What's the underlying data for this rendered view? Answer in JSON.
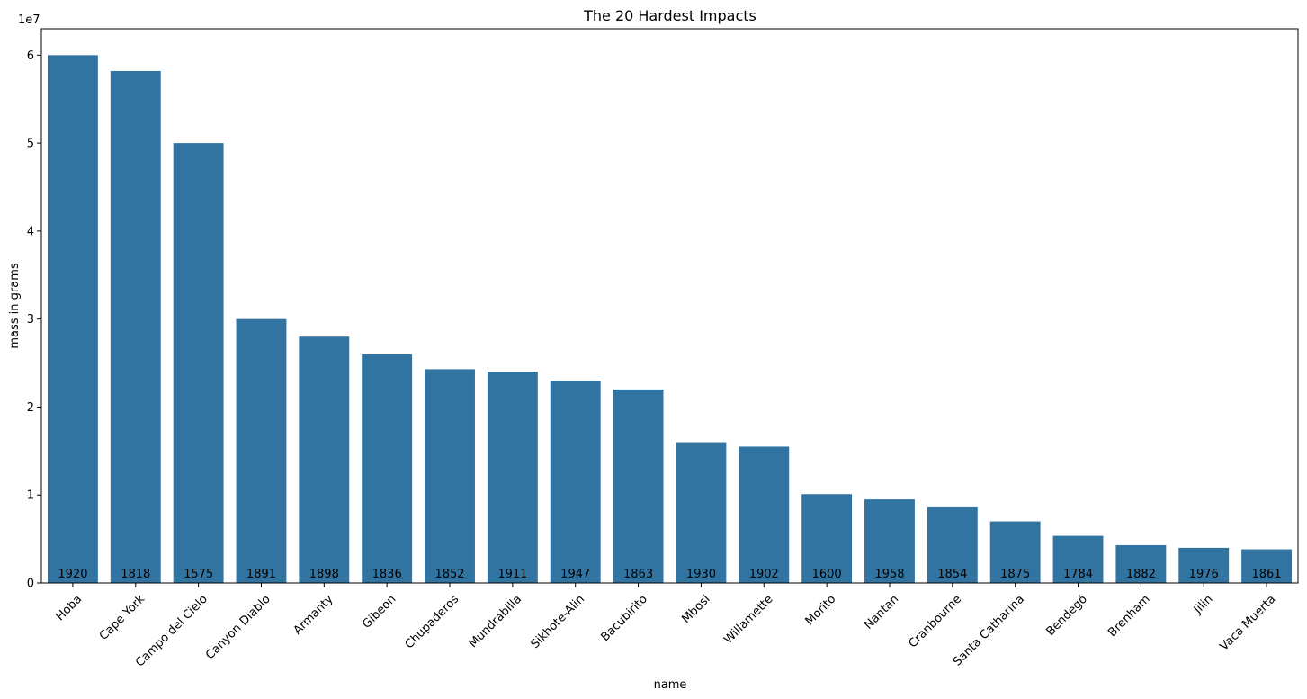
{
  "chart_data": {
    "type": "bar",
    "title": "The 20 Hardest Impacts",
    "xlabel": "name",
    "ylabel": "mass in grams",
    "y_offset_label": "1e7",
    "ylim": [
      0,
      63000000
    ],
    "yticks": [
      0,
      10000000,
      20000000,
      30000000,
      40000000,
      50000000,
      60000000
    ],
    "ytick_labels": [
      "0",
      "1",
      "2",
      "3",
      "4",
      "5",
      "6"
    ],
    "bar_color": "#3274a1",
    "grid": false,
    "categories": [
      "Hoba",
      "Cape York",
      "Campo del Cielo",
      "Canyon Diablo",
      "Armanty",
      "Gibeon",
      "Chupaderos",
      "Mundrabilla",
      "Sikhote-Alin",
      "Bacubirito",
      "Mbosi",
      "Willamette",
      "Morito",
      "Nantan",
      "Cranbourne",
      "Santa Catharina",
      "Bendegó",
      "Brenham",
      "Jilin",
      "Vaca Muerta"
    ],
    "values": [
      60000000,
      58200000,
      50000000,
      30000000,
      28000000,
      26000000,
      24300000,
      24000000,
      23000000,
      22000000,
      16000000,
      15500000,
      10100000,
      9500000,
      8600000,
      7000000,
      5360000,
      4300000,
      4000000,
      3830000
    ],
    "bar_labels": [
      "1920",
      "1818",
      "1575",
      "1891",
      "1898",
      "1836",
      "1852",
      "1911",
      "1947",
      "1863",
      "1930",
      "1902",
      "1600",
      "1958",
      "1854",
      "1875",
      "1784",
      "1882",
      "1976",
      "1861"
    ]
  }
}
